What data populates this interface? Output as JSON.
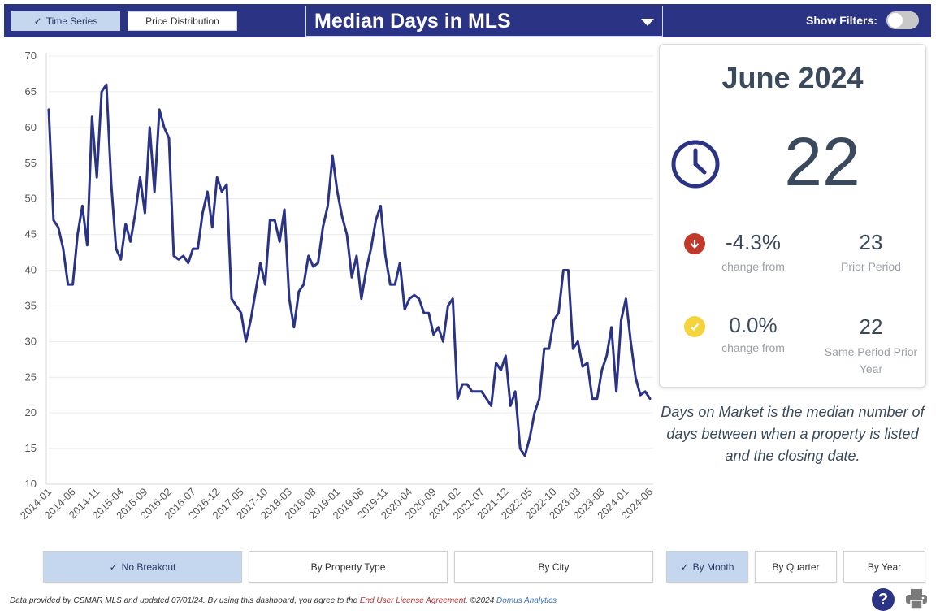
{
  "header": {
    "tabs": [
      {
        "label": "Time Series",
        "active": true
      },
      {
        "label": "Price Distribution",
        "active": false
      }
    ],
    "metric": "Median Days in MLS",
    "filters_label": "Show Filters:",
    "filters_on": false
  },
  "card": {
    "period": "June 2024",
    "value": "22",
    "clock_icon": "clock-icon",
    "change": {
      "pct": "-4.3%",
      "sub": "change from",
      "prior_value": "23",
      "prior_label": "Prior Period",
      "icon": "arrow-down-icon",
      "color": "#c0392b"
    },
    "yoy": {
      "pct": "0.0%",
      "sub": "change from",
      "prior_value": "22",
      "prior_label": "Same Period Prior Year",
      "icon": "check-icon",
      "color": "#f5d33d"
    }
  },
  "description": "Days on Market is the median number of days between when a property is listed and the closing date.",
  "breakouts": [
    {
      "label": "No Breakout",
      "active": true
    },
    {
      "label": "By Property Type",
      "active": false
    },
    {
      "label": "By City",
      "active": false
    }
  ],
  "periods": [
    {
      "label": "By Month",
      "active": true
    },
    {
      "label": "By Quarter",
      "active": false
    },
    {
      "label": "By Year",
      "active": false
    }
  ],
  "footer": {
    "text": "Data provided by CSMAR MLS and updated 07/01/24.  By using this dashboard, you agree to the ",
    "eula": "End User License Agreement",
    "copy": ".  ©2024 ",
    "brand": "Domus Analytics"
  },
  "chart_data": {
    "type": "line",
    "line_color": "#2b3385",
    "ylim": [
      10,
      70
    ],
    "yticks": [
      10,
      15,
      20,
      25,
      30,
      35,
      40,
      45,
      50,
      55,
      60,
      65,
      70
    ],
    "grid": "horizontal",
    "xtick_labels": [
      "2014-01",
      "2014-06",
      "2014-11",
      "2015-04",
      "2015-09",
      "2016-02",
      "2016-07",
      "2016-12",
      "2017-05",
      "2017-10",
      "2018-03",
      "2018-08",
      "2019-01",
      "2019-06",
      "2019-11",
      "2020-04",
      "2020-09",
      "2021-02",
      "2021-07",
      "2021-12",
      "2022-05",
      "2022-10",
      "2023-03",
      "2023-08",
      "2024-01",
      "2024-06"
    ],
    "x_start": "2014-01",
    "x_end": "2024-06",
    "values": [
      62.5,
      47,
      46,
      43,
      38,
      38,
      45,
      49,
      43.5,
      61.5,
      53,
      65,
      66,
      52,
      43,
      41.5,
      46.5,
      44,
      48,
      53,
      48,
      60,
      51,
      62.5,
      60,
      58.5,
      42,
      41.5,
      42,
      41,
      43,
      43,
      48,
      51,
      46,
      53,
      51,
      52,
      36,
      35,
      34,
      30,
      33,
      37,
      41,
      38,
      47,
      47,
      44,
      48.5,
      36,
      32,
      37,
      38,
      42,
      40.5,
      41,
      46,
      49,
      56,
      51,
      47.5,
      45,
      39,
      42,
      36,
      40,
      43,
      47,
      49,
      42,
      38,
      38,
      41,
      34.5,
      36,
      36.5,
      36,
      34,
      34,
      31,
      32,
      30,
      35,
      36,
      22,
      24,
      24,
      23,
      23,
      23,
      22,
      21,
      27,
      26,
      28,
      21,
      23,
      15,
      14,
      16.5,
      20,
      22,
      29,
      29,
      33,
      34,
      40,
      40,
      29,
      30,
      26.5,
      27,
      22,
      22,
      26,
      28,
      32,
      23,
      33,
      36,
      30,
      25,
      22.5,
      23,
      22
    ]
  }
}
